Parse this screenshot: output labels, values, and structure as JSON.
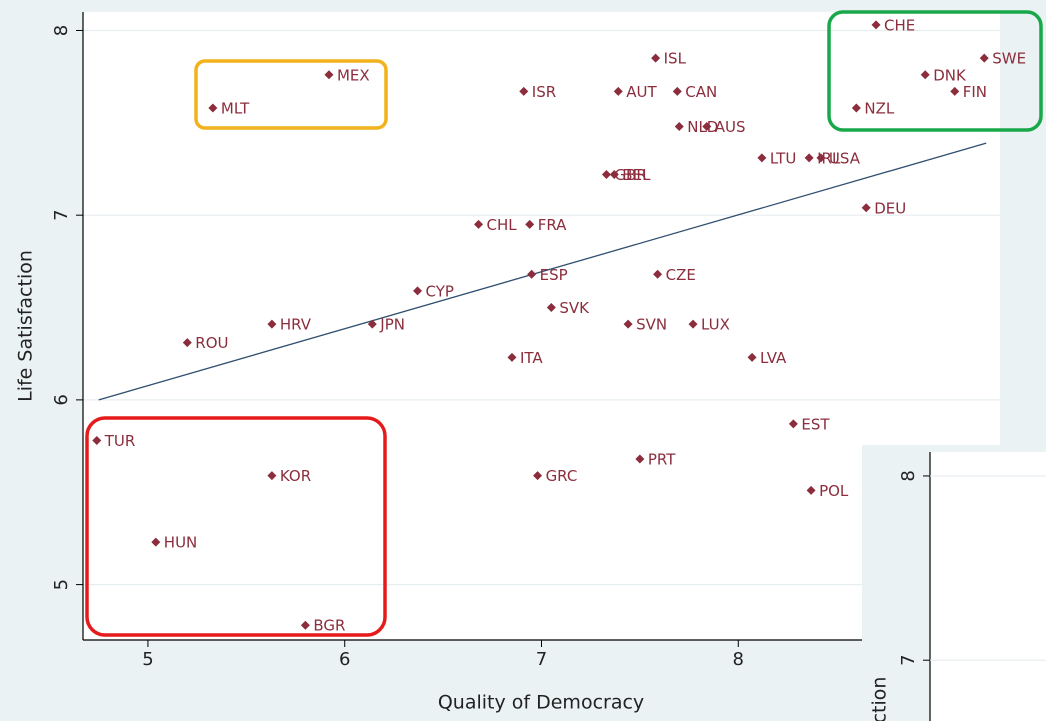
{
  "chart_data": {
    "type": "scatter",
    "xlabel": "Quality of Democracy",
    "ylabel": "Life Satisfaction",
    "xlim": [
      4.67,
      9.33
    ],
    "ylim": [
      4.7,
      8.1
    ],
    "xticks": [
      5,
      6,
      7,
      8
    ],
    "yticks": [
      5,
      6,
      7,
      8
    ],
    "grid": true,
    "color": "#8b2d3c",
    "labels": [
      "TUR",
      "KOR",
      "HUN",
      "BGR",
      "ROU",
      "HRV",
      "JPN",
      "CYP",
      "MLT",
      "MEX",
      "ISR",
      "ISL",
      "AUT",
      "CAN",
      "NLD",
      "AUS",
      "LTU",
      "IRL",
      "USA",
      "GBR",
      "BEL",
      "CHL",
      "FRA",
      "ESP",
      "CZE",
      "SVK",
      "SVN",
      "LUX",
      "ITA",
      "LVA",
      "DEU",
      "CHE",
      "SWE",
      "DNK",
      "FIN",
      "NZL",
      "EST",
      "PRT",
      "GRC",
      "POL"
    ],
    "x": [
      4.74,
      5.63,
      5.04,
      5.8,
      5.2,
      5.63,
      6.14,
      6.37,
      5.33,
      5.92,
      6.91,
      7.58,
      7.39,
      7.69,
      7.7,
      7.84,
      8.12,
      8.36,
      8.42,
      7.33,
      7.37,
      6.68,
      6.94,
      6.95,
      7.59,
      7.05,
      7.44,
      7.77,
      6.85,
      8.07,
      8.65,
      8.7,
      9.25,
      8.95,
      9.1,
      8.6,
      8.28,
      7.5,
      6.98,
      8.37
    ],
    "y": [
      5.78,
      5.59,
      5.23,
      4.78,
      6.31,
      6.41,
      6.41,
      6.59,
      7.58,
      7.76,
      7.67,
      7.85,
      7.67,
      7.67,
      7.48,
      7.48,
      7.31,
      7.31,
      7.31,
      7.22,
      7.22,
      6.95,
      6.95,
      6.68,
      6.68,
      6.5,
      6.41,
      6.41,
      6.23,
      6.23,
      7.04,
      8.03,
      7.85,
      7.76,
      7.67,
      7.58,
      5.87,
      5.68,
      5.59,
      5.51
    ],
    "trendline": {
      "x": [
        4.75,
        9.26
      ],
      "y": [
        6.0,
        7.39
      ],
      "color": "#2f4f6f"
    }
  },
  "inset": {
    "ylabel": "ction",
    "ylim": [
      6.67,
      8.13
    ],
    "yticks": [
      7,
      8
    ]
  }
}
